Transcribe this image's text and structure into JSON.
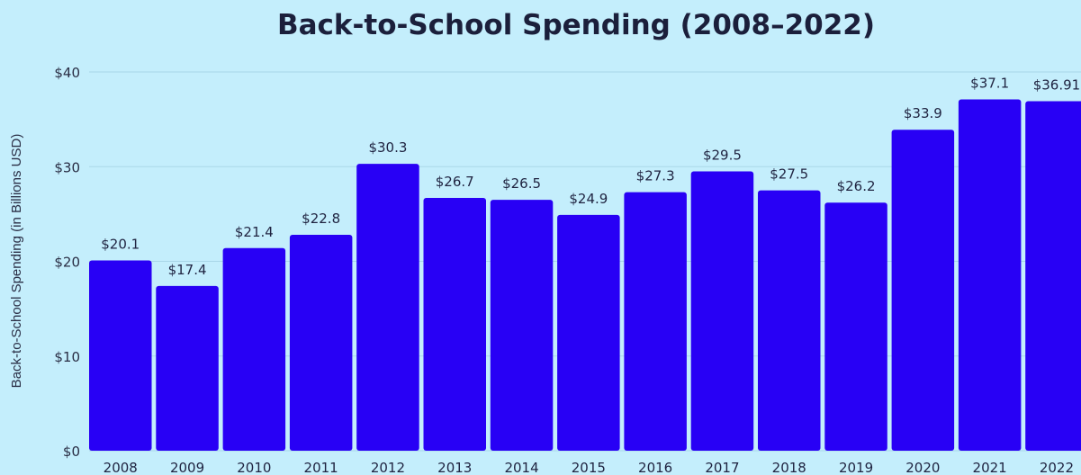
{
  "chart_data": {
    "type": "bar",
    "title": "Back-to-School Spending (2008–2022)",
    "xlabel": "",
    "ylabel": "Back-to-School Spending (in Billions USD)",
    "categories": [
      "2008",
      "2009",
      "2010",
      "2011",
      "2012",
      "2013",
      "2014",
      "2015",
      "2016",
      "2017",
      "2018",
      "2019",
      "2020",
      "2021",
      "2022"
    ],
    "values": [
      20.1,
      17.4,
      21.4,
      22.8,
      30.3,
      26.7,
      26.5,
      24.9,
      27.3,
      29.5,
      27.5,
      26.2,
      33.9,
      37.1,
      36.91
    ],
    "data_labels": [
      "$20.1",
      "$17.4",
      "$21.4",
      "$22.8",
      "$30.3",
      "$26.7",
      "$26.5",
      "$24.9",
      "$27.3",
      "$29.5",
      "$27.5",
      "$26.2",
      "$33.9",
      "$37.1",
      "$36.91"
    ],
    "yticks": [
      0,
      10,
      20,
      30,
      40
    ],
    "ytick_labels": [
      "$0",
      "$10",
      "$20",
      "$30",
      "$40"
    ],
    "ylim": [
      0,
      40
    ],
    "grid": true,
    "legend": "none",
    "bar_color": "#2800f5",
    "background_color": "#c4eefc"
  }
}
